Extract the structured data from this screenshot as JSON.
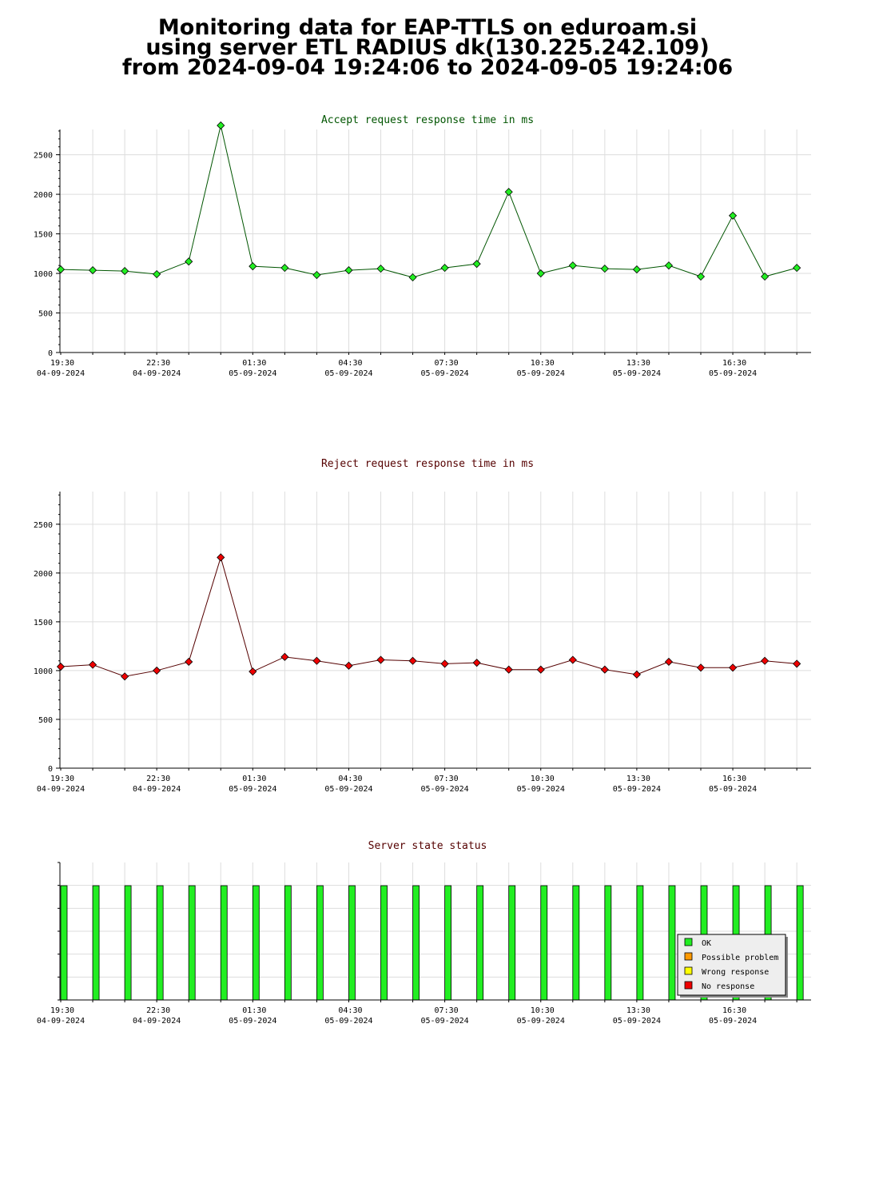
{
  "page": {
    "title_lines": [
      "Monitoring data for EAP-TTLS on eduroam.si",
      "using server ETL RADIUS dk(130.225.242.109)",
      "from 2024-09-04 19:24:06 to 2024-09-05 19:24:06"
    ]
  },
  "chart_data": [
    {
      "type": "line",
      "title": "Accept request response time in ms",
      "title_color": "#005500",
      "ylim": [
        0,
        2900
      ],
      "yticks": [
        0,
        500,
        1000,
        1500,
        2000,
        2500
      ],
      "xticks": [
        {
          "time": "19:30",
          "date": "04-09-2024"
        },
        {
          "time": "22:30",
          "date": "04-09-2024"
        },
        {
          "time": "01:30",
          "date": "05-09-2024"
        },
        {
          "time": "04:30",
          "date": "05-09-2024"
        },
        {
          "time": "07:30",
          "date": "05-09-2024"
        },
        {
          "time": "10:30",
          "date": "05-09-2024"
        },
        {
          "time": "13:30",
          "date": "05-09-2024"
        },
        {
          "time": "16:30",
          "date": "05-09-2024"
        }
      ],
      "grid": true,
      "line_color": "#005500",
      "marker_color": "#22ee22",
      "series": [
        {
          "values": [
            1050,
            1040,
            1030,
            990,
            1150,
            2870,
            1090,
            1070,
            980,
            1040,
            1060,
            950,
            1070,
            1120,
            2030,
            1000,
            1100,
            1060,
            1050,
            1100,
            960,
            1730,
            960,
            1070
          ]
        }
      ]
    },
    {
      "type": "line",
      "title": "Reject request response time in ms",
      "title_color": "#550000",
      "ylim": [
        0,
        2900
      ],
      "yticks": [
        0,
        500,
        1000,
        1500,
        2000,
        2500
      ],
      "xticks": [
        {
          "time": "19:30",
          "date": "04-09-2024"
        },
        {
          "time": "22:30",
          "date": "04-09-2024"
        },
        {
          "time": "01:30",
          "date": "05-09-2024"
        },
        {
          "time": "04:30",
          "date": "05-09-2024"
        },
        {
          "time": "07:30",
          "date": "05-09-2024"
        },
        {
          "time": "10:30",
          "date": "05-09-2024"
        },
        {
          "time": "13:30",
          "date": "05-09-2024"
        },
        {
          "time": "16:30",
          "date": "05-09-2024"
        }
      ],
      "grid": true,
      "line_color": "#550000",
      "marker_color": "#ee0000",
      "series": [
        {
          "values": [
            1040,
            1060,
            940,
            1000,
            1090,
            2160,
            990,
            1140,
            1100,
            1050,
            1110,
            1100,
            1070,
            1080,
            1010,
            1010,
            1110,
            1010,
            960,
            1090,
            1030,
            1030,
            1100,
            1070
          ]
        }
      ]
    },
    {
      "type": "bar",
      "title": "Server state status",
      "title_color": "#550000",
      "xticks": [
        {
          "time": "19:30",
          "date": "04-09-2024"
        },
        {
          "time": "22:30",
          "date": "04-09-2024"
        },
        {
          "time": "01:30",
          "date": "05-09-2024"
        },
        {
          "time": "04:30",
          "date": "05-09-2024"
        },
        {
          "time": "07:30",
          "date": "05-09-2024"
        },
        {
          "time": "10:30",
          "date": "05-09-2024"
        },
        {
          "time": "13:30",
          "date": "05-09-2024"
        },
        {
          "time": "16:30",
          "date": "05-09-2024"
        }
      ],
      "grid": true,
      "legend_position": "bottom-right",
      "legend": [
        {
          "label": "OK",
          "color": "#22ee22"
        },
        {
          "label": "Possible problem",
          "color": "#ff9900"
        },
        {
          "label": "Wrong response",
          "color": "#ffff00"
        },
        {
          "label": "No response",
          "color": "#ee0000"
        }
      ],
      "states": [
        "OK",
        "OK",
        "OK",
        "OK",
        "OK",
        "OK",
        "OK",
        "OK",
        "OK",
        "OK",
        "OK",
        "OK",
        "OK",
        "OK",
        "OK",
        "OK",
        "OK",
        "OK",
        "OK",
        "OK",
        "OK",
        "OK",
        "OK",
        "OK"
      ]
    }
  ]
}
